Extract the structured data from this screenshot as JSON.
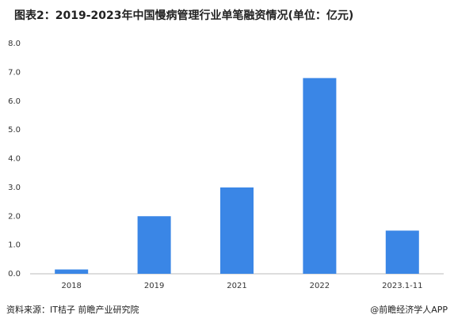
{
  "chart_data": {
    "type": "bar",
    "title": "图表2：2019-2023年中国慢病管理行业单笔融资情况(单位：亿元)",
    "categories": [
      "2018",
      "2019",
      "2021",
      "2022",
      "2023.1-11"
    ],
    "values": [
      0.15,
      2.0,
      3.0,
      6.8,
      1.5
    ],
    "color": "#3a86e6",
    "ylim": [
      0,
      8
    ],
    "yticks": [
      {
        "value": 0,
        "label": "0.0"
      },
      {
        "value": 1,
        "label": "1.0"
      },
      {
        "value": 2,
        "label": "2.0"
      },
      {
        "value": 3,
        "label": "3.0"
      },
      {
        "value": 4,
        "label": "4.0"
      },
      {
        "value": 5,
        "label": "5.0"
      },
      {
        "value": 6,
        "label": "6.0"
      },
      {
        "value": 7,
        "label": "7.0"
      },
      {
        "value": 8,
        "label": "8.0"
      }
    ],
    "grid": false,
    "source": "资料来源：IT桔子 前瞻产业研究院",
    "credit": "@前瞻经济学人APP"
  }
}
